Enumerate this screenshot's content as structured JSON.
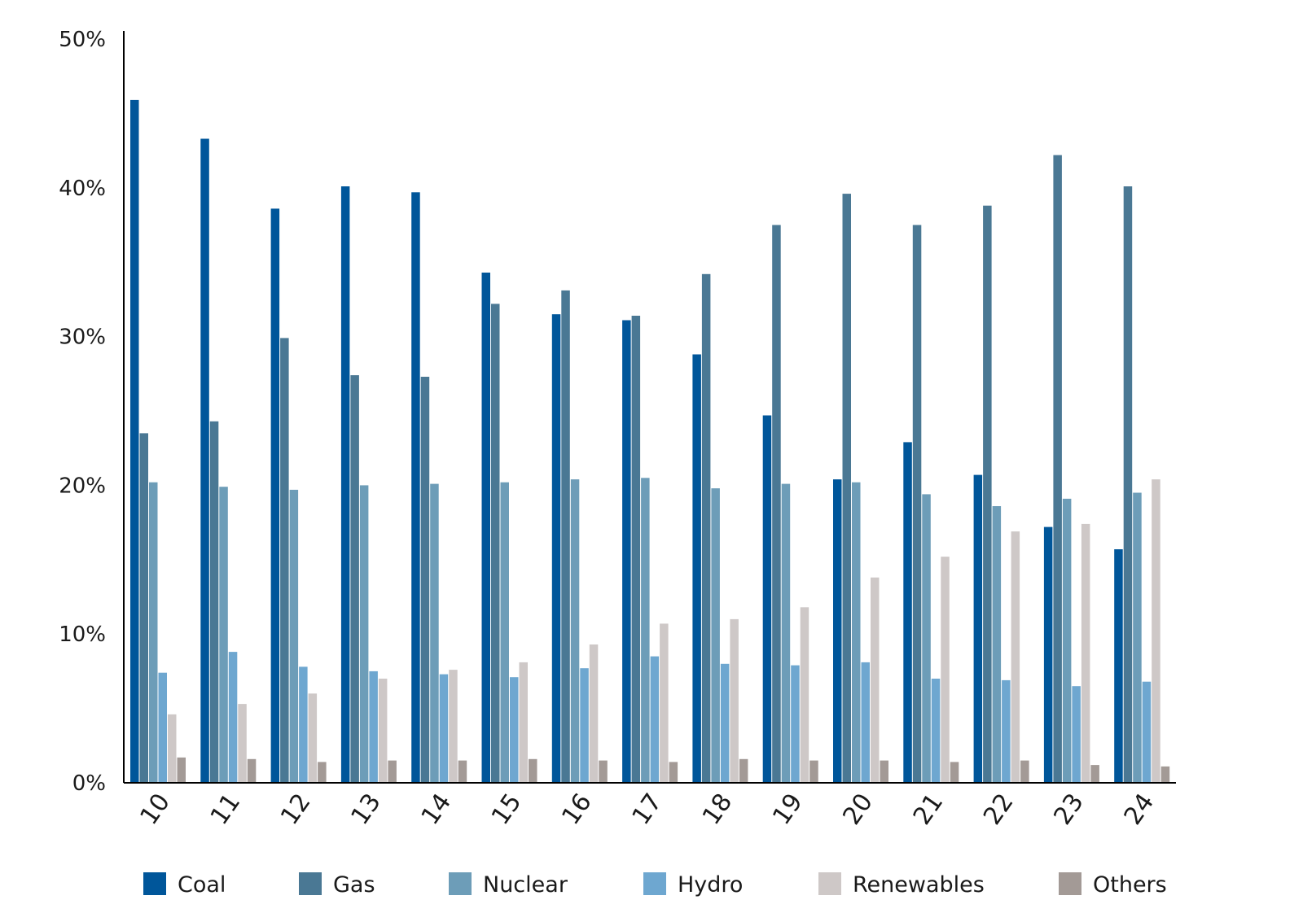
{
  "chart_data": {
    "type": "bar",
    "categories": [
      "10",
      "11",
      "12",
      "13",
      "14",
      "15",
      "16",
      "17",
      "18",
      "19",
      "20",
      "21",
      "22",
      "23",
      "24"
    ],
    "series": [
      {
        "name": "Coal",
        "color": "#00569a",
        "values": [
          45.9,
          43.3,
          38.6,
          40.1,
          39.7,
          34.3,
          31.5,
          31.1,
          28.8,
          24.7,
          20.4,
          22.9,
          20.7,
          17.2,
          15.7
        ]
      },
      {
        "name": "Gas",
        "color": "#4a7894",
        "values": [
          23.5,
          24.3,
          29.9,
          27.4,
          27.3,
          32.2,
          33.1,
          31.4,
          34.2,
          37.5,
          39.6,
          37.5,
          38.8,
          42.2,
          40.1
        ]
      },
      {
        "name": "Nuclear",
        "color": "#6d9db8",
        "values": [
          20.2,
          19.9,
          19.7,
          20.0,
          20.1,
          20.2,
          20.4,
          20.5,
          19.8,
          20.1,
          20.2,
          19.4,
          18.6,
          19.1,
          19.5
        ]
      },
      {
        "name": "Hydro",
        "color": "#6ea7d0",
        "values": [
          7.4,
          8.8,
          7.8,
          7.5,
          7.3,
          7.1,
          7.7,
          8.5,
          8.0,
          7.9,
          8.1,
          7.0,
          6.9,
          6.5,
          6.8
        ]
      },
      {
        "name": "Renewables",
        "color": "#cec8c7",
        "values": [
          4.6,
          5.3,
          6.0,
          7.0,
          7.6,
          8.1,
          9.3,
          10.7,
          11.0,
          11.8,
          13.8,
          15.2,
          16.9,
          17.4,
          20.4
        ]
      },
      {
        "name": "Others",
        "color": "#a39a96",
        "values": [
          1.7,
          1.6,
          1.4,
          1.5,
          1.5,
          1.6,
          1.5,
          1.4,
          1.6,
          1.5,
          1.5,
          1.4,
          1.5,
          1.2,
          1.1
        ]
      }
    ],
    "yticks": [
      "0%",
      "10%",
      "20%",
      "30%",
      "40%",
      "50%"
    ],
    "ylim": [
      0,
      50
    ],
    "legend_position": "bottom",
    "grid": false
  }
}
